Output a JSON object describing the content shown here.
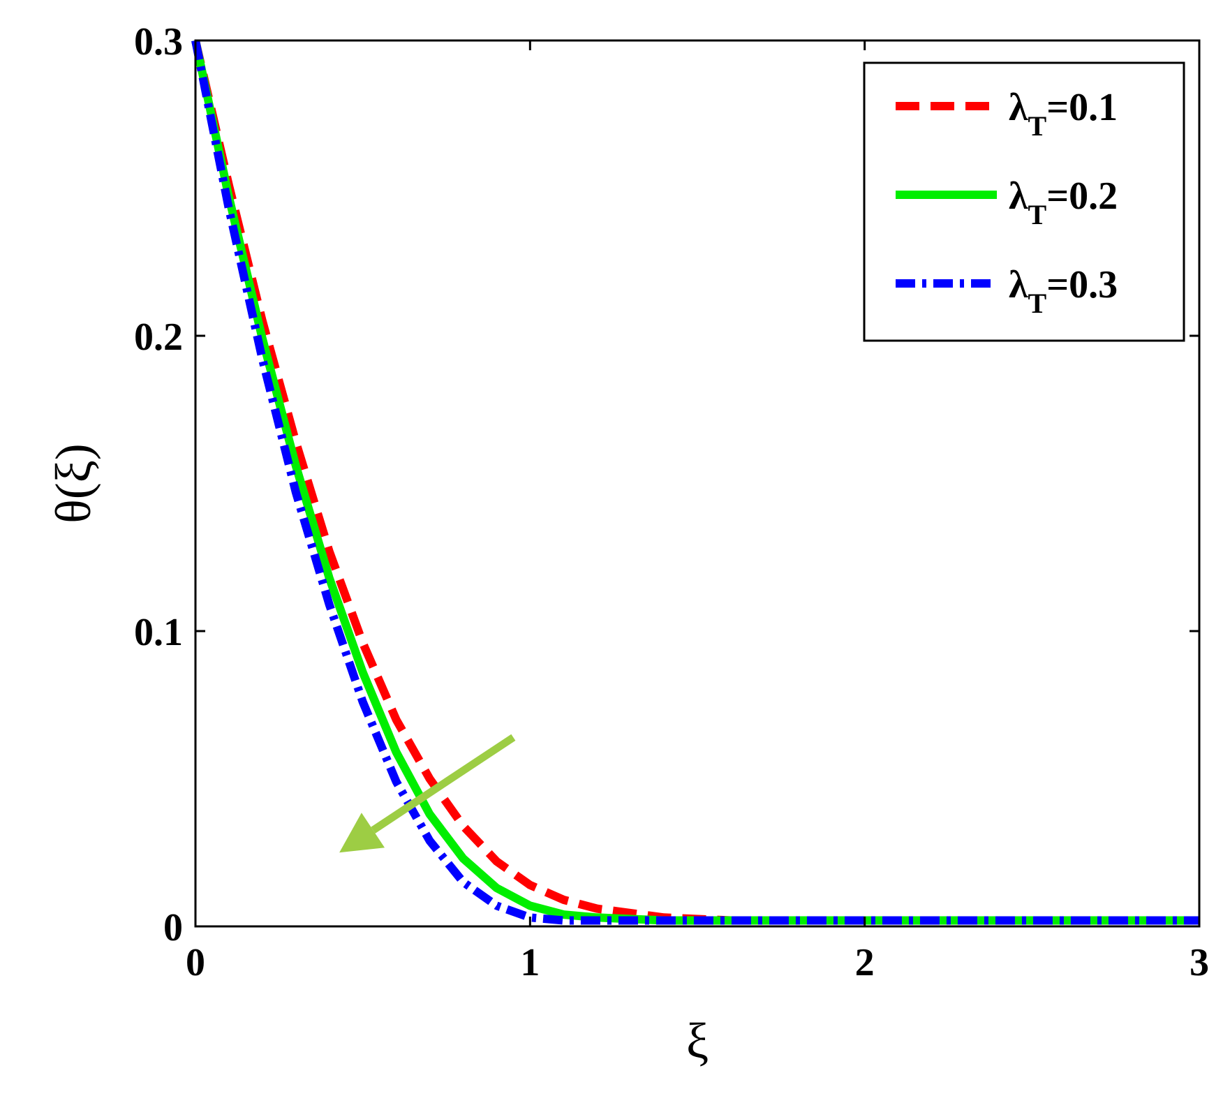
{
  "chart_data": {
    "type": "line",
    "title": "",
    "xlabel": "ξ",
    "ylabel": "θ(ξ)",
    "xlim": [
      0,
      3
    ],
    "ylim": [
      0,
      0.3
    ],
    "xticks": [
      "0",
      "1",
      "2",
      "3"
    ],
    "yticks": [
      "0",
      "0.1",
      "0.2",
      "0.3"
    ],
    "grid": false,
    "legend_position": "top-right",
    "series": [
      {
        "name": "λ_T=0.1",
        "label_main": "λ",
        "label_sub": "T",
        "label_rest": "=0.1",
        "color": "#ff0000",
        "style": "dashed",
        "x": [
          0,
          0.1,
          0.2,
          0.3,
          0.4,
          0.5,
          0.6,
          0.7,
          0.8,
          0.9,
          1.0,
          1.1,
          1.2,
          1.4,
          1.6,
          2.0,
          2.5,
          3.0
        ],
        "y": [
          0.3,
          0.251,
          0.205,
          0.164,
          0.127,
          0.096,
          0.07,
          0.05,
          0.034,
          0.022,
          0.014,
          0.009,
          0.006,
          0.003,
          0.002,
          0.002,
          0.002,
          0.002
        ]
      },
      {
        "name": "λ_T=0.2",
        "label_main": "λ",
        "label_sub": "T",
        "label_rest": "=0.2",
        "color": "#00ee00",
        "style": "solid",
        "x": [
          0,
          0.1,
          0.2,
          0.3,
          0.4,
          0.5,
          0.6,
          0.7,
          0.8,
          0.9,
          1.0,
          1.1,
          1.2,
          1.4,
          2.0,
          2.5,
          3.0
        ],
        "y": [
          0.3,
          0.247,
          0.199,
          0.156,
          0.118,
          0.086,
          0.059,
          0.038,
          0.023,
          0.013,
          0.007,
          0.004,
          0.003,
          0.002,
          0.002,
          0.002,
          0.002
        ]
      },
      {
        "name": "λ_T=0.3",
        "label_main": "λ",
        "label_sub": "T",
        "label_rest": "=0.3",
        "color": "#0000ff",
        "style": "dashdot",
        "x": [
          0,
          0.1,
          0.2,
          0.3,
          0.4,
          0.5,
          0.6,
          0.7,
          0.8,
          0.9,
          1.0,
          1.1,
          1.5,
          2.0,
          2.5,
          3.0
        ],
        "y": [
          0.3,
          0.243,
          0.192,
          0.147,
          0.109,
          0.076,
          0.049,
          0.029,
          0.015,
          0.007,
          0.003,
          0.002,
          0.002,
          0.002,
          0.002,
          0.002
        ]
      }
    ],
    "annotation": {
      "type": "arrow",
      "color": "#9dcd44",
      "from": [
        0.95,
        0.064
      ],
      "to": [
        0.43,
        0.025
      ]
    }
  }
}
